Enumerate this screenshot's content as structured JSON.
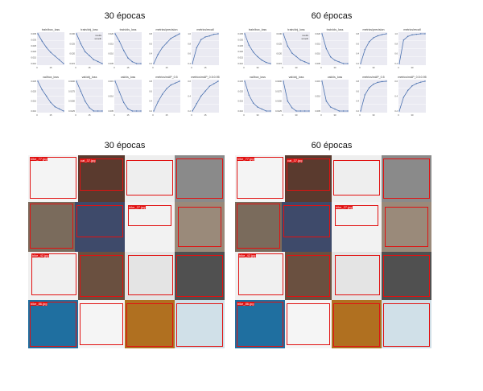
{
  "titles": {
    "top_left": "30 épocas",
    "top_right": "60 épocas",
    "bottom_left": "30 épocas",
    "bottom_right": "60 épocas"
  },
  "chart_data": [
    {
      "type": "line",
      "panel": "30 épocas",
      "subplots": [
        {
          "title": "train/box_loss",
          "yticks": [
            "0.035",
            "0.030",
            "0.025",
            "0.020",
            "0.015",
            "0.010"
          ],
          "x": [
            0,
            5,
            10,
            15,
            20,
            25,
            30
          ],
          "values": [
            0.035,
            0.029,
            0.024,
            0.02,
            0.017,
            0.014,
            0.011
          ]
        },
        {
          "title": "train/obj_loss",
          "yticks": [
            "0.030",
            "0.025",
            "0.020",
            "0.015"
          ],
          "legend": [
            "results",
            "smooth"
          ],
          "x": [
            0,
            5,
            10,
            15,
            20,
            25,
            30
          ],
          "values": [
            0.031,
            0.026,
            0.022,
            0.02,
            0.018,
            0.017,
            0.016
          ]
        },
        {
          "title": "train/cls_loss",
          "yticks": [
            "0.020",
            "0.015",
            "0.010",
            "0.005"
          ],
          "x": [
            0,
            5,
            10,
            15,
            20,
            25,
            30
          ],
          "values": [
            0.021,
            0.017,
            0.012,
            0.008,
            0.006,
            0.005,
            0.005
          ]
        },
        {
          "title": "metrics/precision",
          "yticks": [
            "0.8",
            "0.6",
            "0.4",
            "0.2"
          ],
          "x": [
            0,
            5,
            10,
            15,
            20,
            25,
            30
          ],
          "values": [
            0.15,
            0.35,
            0.5,
            0.6,
            0.7,
            0.75,
            0.8
          ]
        },
        {
          "title": "metrics/recall",
          "yticks": [
            "1.0",
            "0.8",
            "0.6",
            "0.4"
          ],
          "x": [
            0,
            5,
            10,
            15,
            20,
            25,
            30
          ],
          "values": [
            0.4,
            0.7,
            0.85,
            0.9,
            0.92,
            0.95,
            0.96
          ]
        },
        {
          "title": "val/box_loss",
          "yticks": [
            "0.025",
            "0.020",
            "0.015",
            "0.010"
          ],
          "x": [
            0,
            5,
            10,
            15,
            20,
            25,
            30
          ],
          "values": [
            0.025,
            0.021,
            0.018,
            0.015,
            0.013,
            0.012,
            0.011
          ]
        },
        {
          "title": "val/obj_loss",
          "yticks": [
            "0.0200",
            "0.0175",
            "0.0150",
            "0.0125"
          ],
          "x": [
            0,
            5,
            10,
            15,
            20,
            25,
            30
          ],
          "values": [
            0.021,
            0.018,
            0.015,
            0.013,
            0.012,
            0.012,
            0.012
          ]
        },
        {
          "title": "val/cls_loss",
          "yticks": [
            "0.015",
            "0.010",
            "0.005"
          ],
          "x": [
            0,
            5,
            10,
            15,
            20,
            25,
            30
          ],
          "values": [
            0.017,
            0.012,
            0.007,
            0.004,
            0.003,
            0.003,
            0.003
          ]
        },
        {
          "title": "metrics/mAP_0.5",
          "yticks": [
            "0.8",
            "0.6",
            "0.4",
            "0.2"
          ],
          "x": [
            0,
            5,
            10,
            15,
            20,
            25,
            30
          ],
          "values": [
            0.1,
            0.35,
            0.55,
            0.7,
            0.8,
            0.85,
            0.9
          ]
        },
        {
          "title": "metrics/mAP_0.5:0.95",
          "yticks": [
            "0.6",
            "0.4",
            "0.2"
          ],
          "x": [
            0,
            5,
            10,
            15,
            20,
            25,
            30
          ],
          "values": [
            0.05,
            0.2,
            0.35,
            0.45,
            0.55,
            0.6,
            0.65
          ]
        }
      ]
    },
    {
      "type": "line",
      "panel": "60 épocas",
      "subplots": [
        {
          "title": "train/box_loss",
          "yticks": [
            "0.035",
            "0.030",
            "0.025",
            "0.020",
            "0.015",
            "0.010"
          ],
          "x": [
            0,
            10,
            20,
            30,
            40,
            50,
            60
          ],
          "values": [
            0.035,
            0.025,
            0.019,
            0.015,
            0.012,
            0.01,
            0.009
          ]
        },
        {
          "title": "train/obj_loss",
          "yticks": [
            "0.030",
            "0.025",
            "0.020",
            "0.015"
          ],
          "legend": [
            "results",
            "smooth"
          ],
          "x": [
            0,
            10,
            20,
            30,
            40,
            50,
            60
          ],
          "values": [
            0.031,
            0.024,
            0.02,
            0.018,
            0.016,
            0.015,
            0.014
          ]
        },
        {
          "title": "train/cls_loss",
          "yticks": [
            "0.020",
            "0.015",
            "0.010",
            "0.005"
          ],
          "x": [
            0,
            10,
            20,
            30,
            40,
            50,
            60
          ],
          "values": [
            0.021,
            0.012,
            0.007,
            0.005,
            0.004,
            0.003,
            0.003
          ]
        },
        {
          "title": "metrics/precision",
          "yticks": [
            "0.8",
            "0.6",
            "0.4",
            "0.2"
          ],
          "x": [
            0,
            10,
            20,
            30,
            40,
            50,
            60
          ],
          "values": [
            0.15,
            0.5,
            0.7,
            0.8,
            0.85,
            0.88,
            0.9
          ]
        },
        {
          "title": "metrics/recall",
          "yticks": [
            "1.0",
            "0.8",
            "0.6",
            "0.4"
          ],
          "x": [
            0,
            10,
            20,
            30,
            40,
            50,
            60
          ],
          "values": [
            0.4,
            0.85,
            0.92,
            0.95,
            0.96,
            0.97,
            0.97
          ]
        },
        {
          "title": "val/box_loss",
          "yticks": [
            "0.025",
            "0.020",
            "0.015",
            "0.010"
          ],
          "x": [
            0,
            10,
            20,
            30,
            40,
            50,
            60
          ],
          "values": [
            0.025,
            0.018,
            0.014,
            0.012,
            0.011,
            0.01,
            0.01
          ]
        },
        {
          "title": "val/obj_loss",
          "yticks": [
            "0.0200",
            "0.0175",
            "0.0150",
            "0.0125"
          ],
          "x": [
            0,
            10,
            20,
            30,
            40,
            50,
            60
          ],
          "values": [
            0.021,
            0.015,
            0.013,
            0.012,
            0.012,
            0.012,
            0.012
          ]
        },
        {
          "title": "val/cls_loss",
          "yticks": [
            "0.015",
            "0.010",
            "0.005"
          ],
          "x": [
            0,
            10,
            20,
            30,
            40,
            50,
            60
          ],
          "values": [
            0.017,
            0.007,
            0.004,
            0.003,
            0.002,
            0.002,
            0.002
          ]
        },
        {
          "title": "metrics/mAP_0.5",
          "yticks": [
            "0.8",
            "0.6",
            "0.4",
            "0.2"
          ],
          "x": [
            0,
            10,
            20,
            30,
            40,
            50,
            60
          ],
          "values": [
            0.1,
            0.55,
            0.75,
            0.85,
            0.9,
            0.92,
            0.93
          ]
        },
        {
          "title": "metrics/mAP_0.5:0.95",
          "yticks": [
            "0.6",
            "0.4",
            "0.2"
          ],
          "x": [
            0,
            10,
            20,
            30,
            40,
            50,
            60
          ],
          "values": [
            0.05,
            0.35,
            0.5,
            0.6,
            0.65,
            0.68,
            0.7
          ]
        }
      ]
    }
  ],
  "mosaics": {
    "left": {
      "labels": [
        "bike_77.jpg",
        "cat_37.jpg",
        "bike_27.jpg",
        "bike_42.jpg",
        "bike_86.jpg"
      ]
    },
    "right": {
      "labels": [
        "bike_77.jpg",
        "cat_37.jpg",
        "bike_27.jpg",
        "bike_42.jpg",
        "bike_86.jpg"
      ]
    }
  },
  "colors": {
    "line": "#4c72b0",
    "grid_bg": "#eaeaf2",
    "box": "#e11111"
  }
}
